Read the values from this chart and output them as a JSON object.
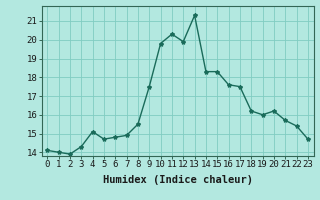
{
  "x": [
    0,
    1,
    2,
    3,
    4,
    5,
    6,
    7,
    8,
    9,
    10,
    11,
    12,
    13,
    14,
    15,
    16,
    17,
    18,
    19,
    20,
    21,
    22,
    23
  ],
  "y": [
    14.1,
    14.0,
    13.9,
    14.3,
    15.1,
    14.7,
    14.8,
    14.9,
    15.5,
    17.5,
    19.8,
    20.3,
    19.9,
    21.3,
    18.3,
    18.3,
    17.6,
    17.5,
    16.2,
    16.0,
    16.2,
    15.7,
    15.4,
    14.7
  ],
  "line_color": "#1a6b5a",
  "marker": "*",
  "marker_size": 3,
  "bg_color": "#b3e8e0",
  "grid_color": "#80ccc2",
  "xlabel": "Humidex (Indice chaleur)",
  "ylim": [
    13.8,
    21.8
  ],
  "xlim": [
    -0.5,
    23.5
  ],
  "yticks": [
    14,
    15,
    16,
    17,
    18,
    19,
    20,
    21
  ],
  "xticks": [
    0,
    1,
    2,
    3,
    4,
    5,
    6,
    7,
    8,
    9,
    10,
    11,
    12,
    13,
    14,
    15,
    16,
    17,
    18,
    19,
    20,
    21,
    22,
    23
  ],
  "tick_label_fontsize": 6.5,
  "xlabel_fontsize": 7.5,
  "line_width": 1.0
}
